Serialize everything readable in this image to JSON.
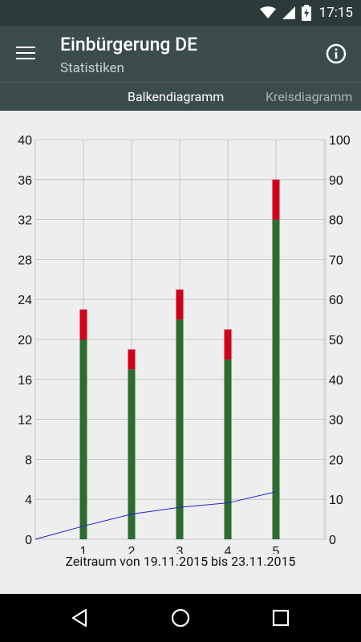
{
  "status_bar": {
    "time": "17:15",
    "icons": [
      "wifi-icon",
      "signal-icon",
      "battery-charging-icon"
    ]
  },
  "app_bar": {
    "title": "Einbürgerung DE",
    "subtitle": "Statistiken",
    "menu_icon": "hamburger-menu-icon",
    "info_icon": "info-icon"
  },
  "tabs": [
    {
      "label": "Balkendiagramm",
      "active": true
    },
    {
      "label": "Kreisdiagramm",
      "active": false
    }
  ],
  "colors": {
    "correct": "#2e6b2e",
    "wrong": "#d0021b",
    "line": "#1f1fd6"
  },
  "chart_data": {
    "type": "bar",
    "categories": [
      "1",
      "2",
      "3",
      "4",
      "5"
    ],
    "series": [
      {
        "values": [
          20,
          17,
          22,
          18,
          32
        ],
        "color": "#2e6b2e"
      },
      {
        "values": [
          3,
          2,
          3,
          3,
          4
        ],
        "color": "#d0021b"
      }
    ],
    "stacked_totals": [
      23,
      19,
      25,
      21,
      36
    ],
    "line_series": {
      "axis": "right",
      "x": [
        0,
        1,
        2,
        3,
        4,
        5
      ],
      "values": [
        0,
        3.3,
        6.3,
        8.0,
        9.1,
        11.9
      ]
    },
    "y_left": {
      "ylim": [
        0,
        40
      ],
      "ticks": [
        "0",
        "4",
        "8",
        "12",
        "16",
        "20",
        "24",
        "28",
        "32",
        "36",
        "40"
      ]
    },
    "y_right": {
      "ylim": [
        0,
        100
      ],
      "ticks": [
        "0",
        "10",
        "20",
        "30",
        "40",
        "50",
        "60",
        "70",
        "80",
        "90",
        "100"
      ]
    },
    "x_ticks": [
      "1",
      "2",
      "3",
      "4",
      "5"
    ],
    "grid": true,
    "caption": "Zeitraum von 19.11.2015 bis 23.11.2015"
  }
}
